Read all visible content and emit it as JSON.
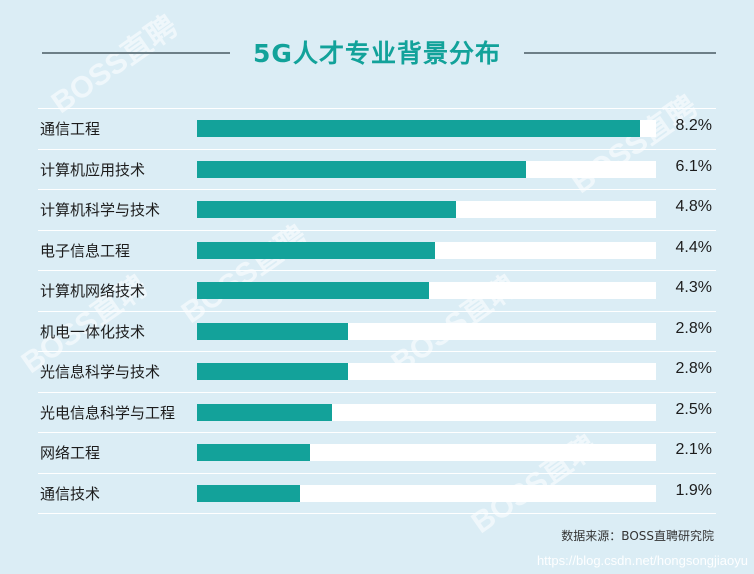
{
  "chart_data": {
    "type": "bar",
    "orientation": "horizontal",
    "title": "5G人才专业背景分布",
    "categories": [
      "通信工程",
      "计算机应用技术",
      "计算机科学与技术",
      "电子信息工程",
      "计算机网络技术",
      "机电一体化技术",
      "光信息科学与技术",
      "光电信息科学与工程",
      "网络工程",
      "通信技术"
    ],
    "values": [
      8.2,
      6.1,
      4.8,
      4.4,
      4.3,
      2.8,
      2.8,
      2.5,
      2.1,
      1.9
    ],
    "value_labels": [
      "8.2%",
      "6.1%",
      "4.8%",
      "4.4%",
      "4.3%",
      "2.8%",
      "2.8%",
      "2.5%",
      "2.1%",
      "1.9%"
    ],
    "unit": "%",
    "xlim": [
      0,
      8.5
    ],
    "grid": false,
    "legend": "none"
  },
  "source": "数据来源：BOSS直聘研究院",
  "url": "https://blog.csdn.net/hongsongjiaoyu",
  "watermark_text": "BOSS直聘",
  "colors": {
    "bar": "#13a29a",
    "track": "#ffffff",
    "background": "#dbedf5",
    "title": "#12a29a"
  }
}
